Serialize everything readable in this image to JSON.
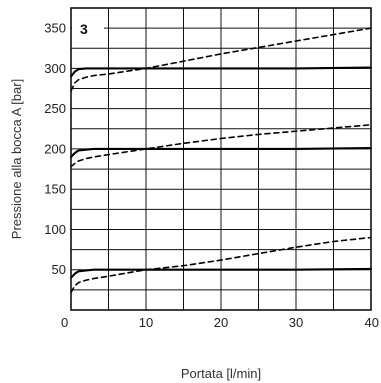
{
  "chart_data": {
    "type": "line",
    "title": "",
    "panel_label": "3",
    "xlabel": "Portata [l/min]",
    "ylabel": "Pressione alla bocca A [bar]",
    "xlim": [
      0,
      40
    ],
    "ylim": [
      0,
      375
    ],
    "x_ticks": [
      0,
      10,
      20,
      30,
      40
    ],
    "y_ticks": [
      50,
      100,
      150,
      200,
      250,
      300,
      350
    ],
    "x_grid_step": 5,
    "y_grid_step": 25,
    "grid": true,
    "series": [
      {
        "style": "solid",
        "x": [
          0,
          0.5,
          1,
          2,
          3,
          5,
          10,
          20,
          30,
          40
        ],
        "y": [
          290,
          296,
          299,
          300,
          300,
          300,
          300,
          300,
          300,
          301
        ]
      },
      {
        "style": "dashed",
        "x": [
          0,
          0.5,
          1,
          2,
          3,
          5,
          10,
          15,
          20,
          25,
          30,
          35,
          40
        ],
        "y": [
          272,
          282,
          286,
          289,
          291,
          293,
          300,
          309,
          318,
          326,
          334,
          342,
          350
        ]
      },
      {
        "style": "solid",
        "x": [
          0,
          0.5,
          1,
          2,
          3,
          5,
          10,
          20,
          30,
          40
        ],
        "y": [
          190,
          195,
          198,
          199,
          200,
          200,
          200,
          200,
          200,
          201
        ]
      },
      {
        "style": "dashed",
        "x": [
          0,
          0.5,
          1,
          2,
          3,
          5,
          10,
          15,
          20,
          25,
          30,
          35,
          40
        ],
        "y": [
          178,
          182,
          185,
          188,
          190,
          193,
          200,
          207,
          213,
          218,
          222,
          226,
          230
        ]
      },
      {
        "style": "solid",
        "x": [
          0,
          0.5,
          1,
          2,
          3,
          5,
          10,
          20,
          30,
          40
        ],
        "y": [
          40,
          45,
          48,
          49,
          50,
          50,
          50,
          50,
          50,
          51
        ]
      },
      {
        "style": "dashed",
        "x": [
          0,
          0.5,
          1,
          2,
          3,
          5,
          10,
          15,
          20,
          25,
          30,
          35,
          40
        ],
        "y": [
          22,
          30,
          34,
          37,
          39,
          42,
          50,
          55,
          62,
          70,
          78,
          85,
          90
        ]
      }
    ]
  }
}
